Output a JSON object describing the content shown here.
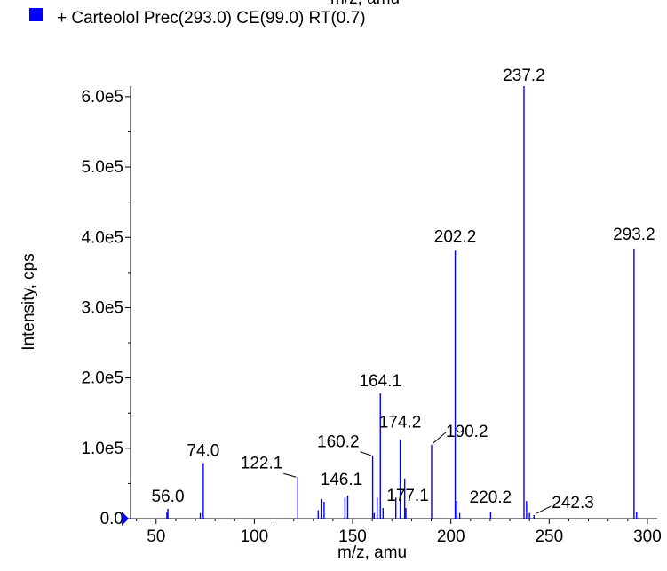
{
  "header": {
    "cut_title": "m/z, amu",
    "legend_label": "+ Carteolol Prec(293.0) CE(99.0) RT(0.7)",
    "legend_color": "#0000ff"
  },
  "chart_data": {
    "type": "bar",
    "xlabel": "m/z, amu",
    "ylabel": "Intensity, cps",
    "xlim": [
      37,
      305
    ],
    "ylim": [
      0,
      615000
    ],
    "x_ticks": [
      50,
      100,
      150,
      200,
      250,
      300
    ],
    "x_tick_labels": [
      "50",
      "100",
      "150",
      "200",
      "250",
      "300"
    ],
    "y_ticks": [
      0,
      100000,
      200000,
      300000,
      400000,
      500000,
      600000
    ],
    "y_tick_labels": [
      "0.0",
      "1.0e5",
      "2.0e5",
      "3.0e5",
      "4.0e5",
      "5.0e5",
      "6.0e5"
    ],
    "grid": false,
    "color": "#0000ff",
    "series": [
      {
        "x": [
          55.5,
          56.0,
          72.5,
          74.0,
          122.1,
          132.5,
          134.0,
          135.5,
          146.1,
          147.5,
          160.2,
          161.0,
          162.5,
          164.1,
          165.5,
          172.0,
          174.2,
          176.5,
          177.1,
          190.2,
          202.2,
          203.0,
          204.5,
          220.2,
          237.2,
          238.5,
          240.0,
          242.3,
          293.2,
          294.5
        ],
        "values": [
          10000,
          14000,
          8000,
          79000,
          59000,
          12000,
          28000,
          24000,
          30000,
          33000,
          90000,
          8000,
          30000,
          178000,
          15000,
          30000,
          112000,
          57000,
          15000,
          105000,
          381000,
          25000,
          8000,
          10000,
          615000,
          25000,
          8000,
          5000,
          384000,
          10000
        ]
      }
    ],
    "peak_labels": [
      {
        "text": "56.0",
        "x": 56.0,
        "y": 14000
      },
      {
        "text": "74.0",
        "x": 74.0,
        "y": 79000
      },
      {
        "text": "122.1",
        "x": 122.1,
        "y": 59000
      },
      {
        "text": "146.1",
        "x": 146.1,
        "y": 30000
      },
      {
        "text": "160.2",
        "x": 160.2,
        "y": 90000
      },
      {
        "text": "164.1",
        "x": 164.1,
        "y": 178000
      },
      {
        "text": "174.2",
        "x": 174.2,
        "y": 112000
      },
      {
        "text": "177.1",
        "x": 177.1,
        "y": 15000
      },
      {
        "text": "190.2",
        "x": 190.2,
        "y": 105000
      },
      {
        "text": "202.2",
        "x": 202.2,
        "y": 381000
      },
      {
        "text": "220.2",
        "x": 220.2,
        "y": 10000
      },
      {
        "text": "237.2",
        "x": 237.2,
        "y": 615000
      },
      {
        "text": "242.3",
        "x": 242.3,
        "y": 5000
      },
      {
        "text": "293.2",
        "x": 293.2,
        "y": 384000
      }
    ]
  }
}
